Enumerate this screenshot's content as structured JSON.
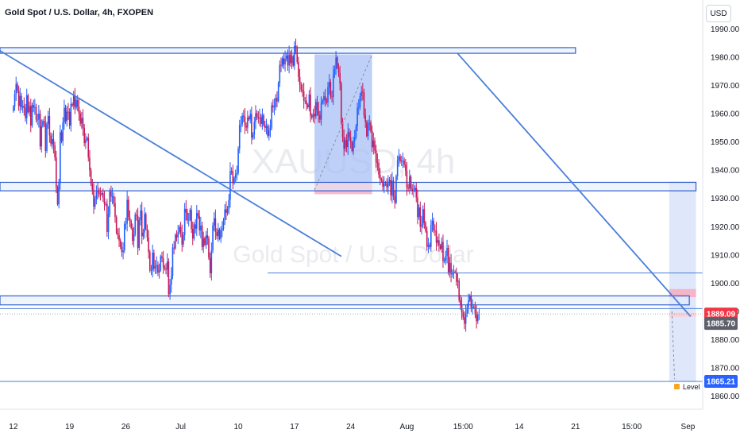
{
  "header": {
    "title": "Gold Spot / U.S. Dollar, 4h, FXOPEN",
    "currency": "USD"
  },
  "watermark": {
    "symbol": "XAUUSD, 4h",
    "name": "Gold Spot / U.S. Dollar"
  },
  "colors": {
    "bull": "#26a69a",
    "bear": "#e91e63",
    "candle": "#c8185a",
    "line": "#4a7fd9",
    "zone_fill": "#e3ebfc",
    "zone_border": "#2f5fd0",
    "pink": "#f5b5c8",
    "last_price_bg": "#f23645",
    "current_bg": "#5d606b",
    "target_bg": "#2962ff"
  },
  "price_labels": {
    "last": "1889.09",
    "current": "1885.70",
    "target": "1865.21",
    "level_label": "Level"
  },
  "chart_data": {
    "type": "candlestick",
    "title": "Gold Spot / U.S. Dollar, 4h, FXOPEN",
    "ylim": [
      1856,
      1994
    ],
    "y_ticks": [
      "1990.00",
      "1980.00",
      "1970.00",
      "1960.00",
      "1950.00",
      "1940.00",
      "1930.00",
      "1920.00",
      "1910.00",
      "1900.00",
      "1890.00",
      "1880.00",
      "1870.00",
      "1860.00"
    ],
    "x_ticks": [
      "12",
      "19",
      "26",
      "Jul",
      "10",
      "17",
      "24",
      "Aug",
      "15:00",
      "14",
      "21",
      "15:00",
      "Sep"
    ],
    "x_tick_index": [
      0,
      42,
      84,
      125,
      168,
      210,
      252,
      294,
      336,
      378,
      420,
      462,
      504
    ],
    "x_range": [
      -10,
      515
    ],
    "closes": [
      1962.5,
      1966.9,
      1970.5,
      1968.1,
      1962.7,
      1966.3,
      1962.2,
      1962.7,
      1962.1,
      1958.4,
      1966.5,
      1960.5,
      1962.7,
      1955.8,
      1963.1,
      1962.2,
      1962.4,
      1957.9,
      1957.9,
      1960.0,
      1948.4,
      1955.6,
      1957.4,
      1956.7,
      1946.8,
      1956.3,
      1959.2,
      1952.3,
      1949.4,
      1951.0,
      1948.7,
      1944.5,
      1934.0,
      1927.9,
      1935.4,
      1953.5,
      1950.3,
      1956.9,
      1962.1,
      1957.3,
      1960.7,
      1960.6,
      1955.8,
      1963.4,
      1962.9,
      1966.5,
      1962.2,
      1964.8,
      1962.5,
      1960.1,
      1956.5,
      1958.5,
      1955.0,
      1949.6,
      1950.8,
      1951.4,
      1944.5,
      1940.0,
      1935.1,
      1933.0,
      1927.1,
      1929.8,
      1932.5,
      1932.4,
      1931.6,
      1931.4,
      1931.9,
      1930.2,
      1928.0,
      1928.0,
      1918.1,
      1924.4,
      1932.4,
      1930.7,
      1930.7,
      1928.3,
      1923.5,
      1917.8,
      1917.0,
      1915.1,
      1912.8,
      1911.0,
      1911.6,
      1920.9,
      1921.1,
      1929.5,
      1923.4,
      1922.0,
      1919.5,
      1915.0,
      1917.3,
      1924.2,
      1923.8,
      1912.5,
      1922.3,
      1925.7,
      1916.6,
      1917.9,
      1924.5,
      1919.2,
      1916.2,
      1911.0,
      1904.5,
      1904.6,
      1910.8,
      1905.1,
      1906.1,
      1906.4,
      1903.7,
      1904.6,
      1909.5,
      1908.8,
      1905.6,
      1905.2,
      1904.8,
      1907.7,
      1896.0,
      1899.4,
      1902.6,
      1912.6,
      1912.3,
      1917.1,
      1916.2,
      1918.0,
      1919.9,
      1917.9,
      1913.7,
      1917.0,
      1926.3,
      1925.0,
      1922.2,
      1922.5,
      1926.0,
      1919.2,
      1915.8,
      1920.8,
      1919.3,
      1924.8,
      1923.8,
      1918.7,
      1920.4,
      1912.8,
      1915.9,
      1913.6,
      1916.9,
      1915.9,
      1909.0,
      1903.5,
      1911.6,
      1920.4,
      1923.0,
      1918.1,
      1916.7,
      1919.0,
      1915.7,
      1918.6,
      1919.3,
      1922.3,
      1926.1,
      1924.9,
      1926.3,
      1929.5,
      1939.7,
      1939.6,
      1935.4,
      1937.2,
      1938.6,
      1939.0,
      1947.6,
      1956.0,
      1956.3,
      1959.3,
      1958.9,
      1955.6,
      1955.1,
      1958.7,
      1958.0,
      1959.9,
      1951.5,
      1952.6,
      1957.1,
      1960.2,
      1958.8,
      1958.4,
      1958.7,
      1956.4,
      1959.5,
      1955.9,
      1955.0,
      1955.6,
      1952.2,
      1954.2,
      1955.1,
      1963.0,
      1962.3,
      1962.4,
      1965.6,
      1964.4,
      1970.9,
      1977.3,
      1977.0,
      1979.6,
      1977.5,
      1979.5,
      1980.6,
      1977.1,
      1981.0,
      1977.9,
      1980.4,
      1977.0,
      1984.0,
      1983.4,
      1978.3,
      1973.0,
      1970.2,
      1968.5,
      1967.9,
      1964.6,
      1964.6,
      1963.2,
      1962.3,
      1966.8,
      1959.3,
      1958.7,
      1959.9,
      1959.1,
      1964.2,
      1961.1,
      1959.6,
      1957.9,
      1963.8,
      1964.7,
      1966.2,
      1964.8,
      1964.0,
      1969.4,
      1971.2,
      1966.1,
      1965.9,
      1973.9,
      1975.8,
      1979.9,
      1976.3,
      1974.4,
      1970.6,
      1956.7,
      1951.6,
      1947.6,
      1950.7,
      1948.2,
      1953.5,
      1951.7,
      1949.8,
      1946.8,
      1950.3,
      1951.7,
      1955.5,
      1962.1,
      1962.3,
      1966.3,
      1967.8,
      1967.5,
      1959.5,
      1957.1,
      1952.1,
      1956.3,
      1956.8,
      1954.0,
      1948.1,
      1950.5,
      1946.9,
      1942.8,
      1942.6,
      1938.4,
      1936.8,
      1936.4,
      1934.2,
      1935.2,
      1935.3,
      1934.0,
      1935.4,
      1936.5,
      1931.1,
      1936.3,
      1930.6,
      1928.5,
      1937.9,
      1943.6,
      1944.9,
      1943.1,
      1943.3,
      1943.4,
      1941.9,
      1939.8,
      1933.8,
      1933.6,
      1937.8,
      1933.4,
      1932.7,
      1933.0,
      1933.8,
      1930.3,
      1923.4,
      1926.8,
      1920.0,
      1920.7,
      1926.2,
      1921.4,
      1918.4,
      1912.9,
      1913.5,
      1912.8,
      1920.7,
      1922.1,
      1918.7,
      1918.6,
      1914.3,
      1915.2,
      1913.3,
      1912.2,
      1914.6,
      1907.8,
      1908.1,
      1909.6,
      1912.5,
      1903.8,
      1907.2,
      1903.1,
      1903.6,
      1904.1,
      1903.9,
      1900.5,
      1900.9,
      1894.0,
      1892.2,
      1889.6,
      1887.9,
      1885.6,
      1889.2,
      1891.3,
      1893.9,
      1895.5,
      1891.2,
      1891.7,
      1891.6,
      1889.3,
      1886.5,
      1888.8,
      1889.1
    ]
  },
  "drawings": {
    "zones": [
      {
        "name": "resistance-zone",
        "p_top": 1983.4,
        "p_bottom": 1981.4,
        "x_start": -10,
        "x_end": 420
      },
      {
        "name": "mid-zone",
        "p_top": 1935.7,
        "p_bottom": 1932.7,
        "x_start": -10,
        "x_end": 510
      },
      {
        "name": "support-zone",
        "p_top": 1895.5,
        "p_bottom": 1892.3,
        "x_start": -10,
        "x_end": 505
      }
    ],
    "trendlines": [
      {
        "name": "trendline-left",
        "x1": -10,
        "p1": 1982.3,
        "x2": 245,
        "p2": 1909.5
      },
      {
        "name": "trendline-right",
        "x1": 332,
        "p1": 1981.3,
        "x2": 506,
        "p2": 1888.2
      }
    ],
    "levels": [
      {
        "name": "level-1903",
        "price": 1903.6,
        "x_start": 190,
        "x_end": 515
      },
      {
        "name": "level-1889",
        "price": 1891.0,
        "x_start": -10,
        "x_end": 515
      },
      {
        "name": "level-target",
        "price": 1865.2,
        "x_start": -10,
        "x_end": 515
      }
    ],
    "long_position": {
      "x_start": 225,
      "x_end": 268,
      "p_top": 1981.0,
      "p_entry": 1936.0,
      "p_stop": 1933.0
    },
    "short_position": {
      "x_start": 490,
      "x_end": 510,
      "p_top": 1936.0,
      "p_entry": 1890.0,
      "p_bottom": 1865.0,
      "p_stop_top": 1897.9
    }
  }
}
